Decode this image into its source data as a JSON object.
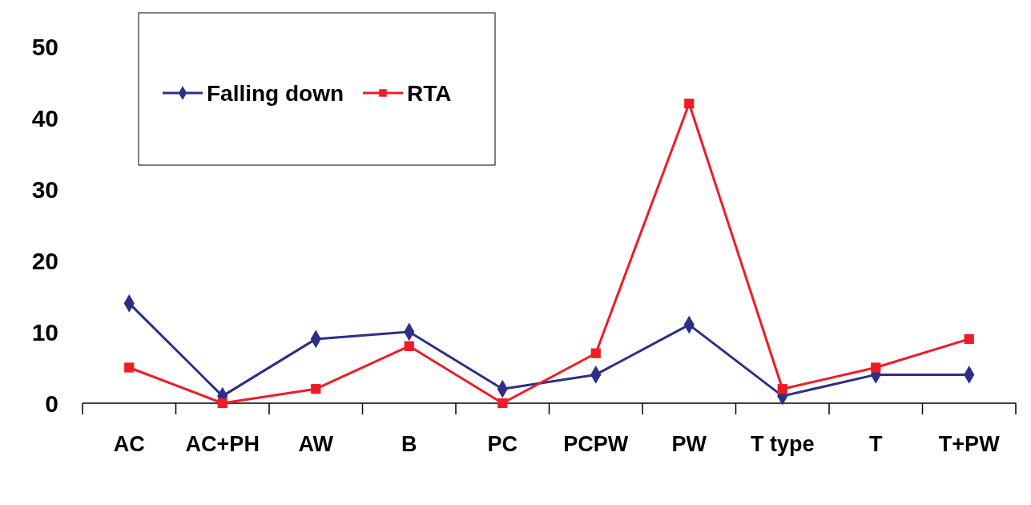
{
  "chart_data": {
    "type": "line",
    "categories": [
      "AC",
      "AC+PH",
      "AW",
      "B",
      "PC",
      "PCPW",
      "PW",
      "T type",
      "T",
      "T+PW"
    ],
    "series": [
      {
        "name": "Falling down",
        "color": "#2b2f86",
        "marker": "diamond",
        "values": [
          14,
          1,
          9,
          10,
          2,
          4,
          11,
          1,
          4,
          4
        ]
      },
      {
        "name": "RTA",
        "color": "#ee1c25",
        "marker": "square",
        "values": [
          5,
          0,
          2,
          8,
          0,
          7,
          42,
          2,
          5,
          9
        ]
      }
    ],
    "ylim": [
      0,
      50
    ],
    "yticks": [
      0,
      10,
      20,
      30,
      40,
      50
    ],
    "grid": false,
    "legend": "top left",
    "line_style": "solid"
  }
}
